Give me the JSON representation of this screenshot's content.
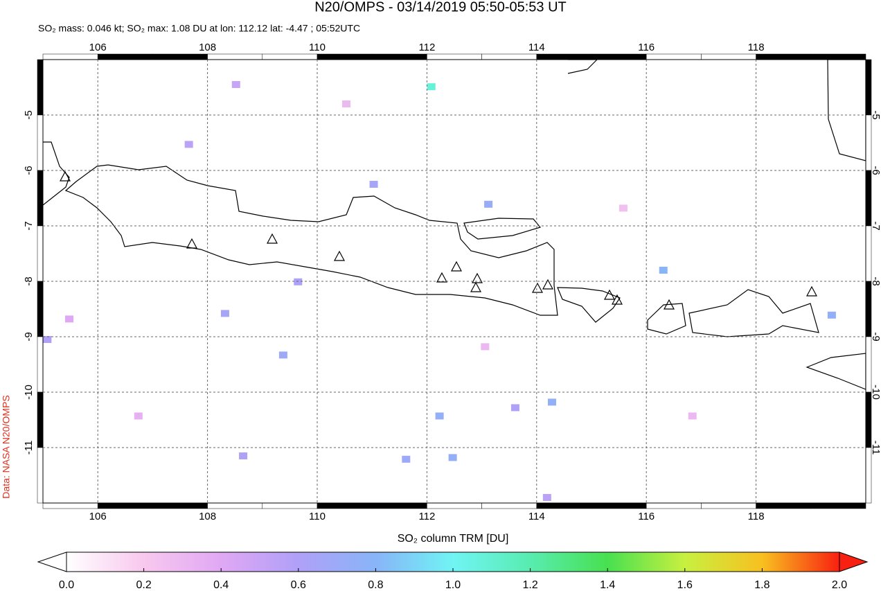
{
  "map": {
    "title": "N20/OMPS - 03/14/2019 05:50-05:53 UT",
    "subtitle": "SO₂ mass: 0.046 kt; SO₂ max: 1.08 DU at lon: 112.12 lat: -4.47 ; 05:52UTC",
    "credit": "Data: NASA N20/OMPS",
    "xlim": [
      105,
      120
    ],
    "ylim": [
      -12,
      -4
    ],
    "xticks": [
      106,
      108,
      110,
      112,
      114,
      116,
      118
    ],
    "yticks": [
      -5,
      -6,
      -7,
      -8,
      -9,
      -10,
      -11
    ],
    "grid": true,
    "pixels": [
      {
        "lon": 112.08,
        "lat": -4.49,
        "value": 1.08
      },
      {
        "lon": 112.23,
        "lat": -10.43,
        "value": 0.75
      },
      {
        "lon": 109.38,
        "lat": -9.33,
        "value": 0.7
      },
      {
        "lon": 114.28,
        "lat": -10.18,
        "value": 0.75
      },
      {
        "lon": 116.31,
        "lat": -7.8,
        "value": 0.8
      },
      {
        "lon": 113.12,
        "lat": -6.61,
        "value": 0.72
      },
      {
        "lon": 111.03,
        "lat": -6.25,
        "value": 0.65
      },
      {
        "lon": 112.47,
        "lat": -11.18,
        "value": 0.75
      },
      {
        "lon": 108.65,
        "lat": -11.15,
        "value": 0.6
      },
      {
        "lon": 111.62,
        "lat": -11.21,
        "value": 0.7
      },
      {
        "lon": 108.32,
        "lat": -8.58,
        "value": 0.65
      },
      {
        "lon": 105.08,
        "lat": -9.05,
        "value": 0.6
      },
      {
        "lon": 109.65,
        "lat": -8.01,
        "value": 0.62
      },
      {
        "lon": 107.66,
        "lat": -5.53,
        "value": 0.55
      },
      {
        "lon": 108.52,
        "lat": -4.45,
        "value": 0.5
      },
      {
        "lon": 114.19,
        "lat": -11.9,
        "value": 0.55
      },
      {
        "lon": 113.61,
        "lat": -10.28,
        "value": 0.6
      },
      {
        "lon": 119.38,
        "lat": -8.61,
        "value": 0.75
      },
      {
        "lon": 105.48,
        "lat": -8.68,
        "value": 0.4
      },
      {
        "lon": 113.06,
        "lat": -9.18,
        "value": 0.3
      },
      {
        "lon": 115.58,
        "lat": -6.68,
        "value": 0.25
      },
      {
        "lon": 116.84,
        "lat": -10.43,
        "value": 0.3
      },
      {
        "lon": 106.74,
        "lat": -10.43,
        "value": 0.35
      },
      {
        "lon": 110.53,
        "lat": -4.8,
        "value": 0.3
      }
    ],
    "colorbar": {
      "label": "SO₂ column TRM [DU]",
      "clim": [
        0,
        2
      ],
      "ticks": [
        {
          "value": 0,
          "label": "0.0"
        },
        0.2,
        0.4,
        0.6,
        0.8,
        {
          "value": 1,
          "label": "1.0"
        },
        1.2,
        1.4,
        1.6,
        1.8,
        {
          "value": 2,
          "label": "2.0"
        }
      ],
      "colors": [
        "#ffffff",
        "#f8c8ee",
        "#e0a8f4",
        "#b0a0f8",
        "#88b4f8",
        "#70f4f4",
        "#58ecb0",
        "#48e050",
        "#c8f040",
        "#f8c020",
        "#f82010"
      ]
    }
  }
}
